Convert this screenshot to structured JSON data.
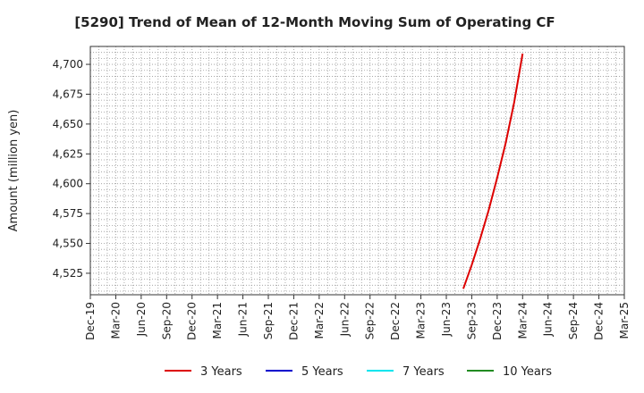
{
  "chart_data": {
    "type": "line",
    "title": "[5290]  Trend of Mean of 12-Month Moving Sum of Operating CF",
    "xlabel": "",
    "ylabel": "Amount (million yen)",
    "ylim": [
      4507,
      4715
    ],
    "yticks": [
      4525,
      4550,
      4575,
      4600,
      4625,
      4650,
      4675,
      4700
    ],
    "ytick_labels": [
      "4,525",
      "4,550",
      "4,575",
      "4,600",
      "4,625",
      "4,650",
      "4,675",
      "4,700"
    ],
    "xrange": [
      "2019-12",
      "2025-03"
    ],
    "xticks": [
      "2019-12",
      "2020-03",
      "2020-06",
      "2020-09",
      "2020-12",
      "2021-03",
      "2021-06",
      "2021-09",
      "2021-12",
      "2022-03",
      "2022-06",
      "2022-09",
      "2022-12",
      "2023-03",
      "2023-06",
      "2023-09",
      "2023-12",
      "2024-03",
      "2024-06",
      "2024-09",
      "2024-12",
      "2025-03"
    ],
    "xtick_labels": [
      "Dec-19",
      "Mar-20",
      "Jun-20",
      "Sep-20",
      "Dec-20",
      "Mar-21",
      "Jun-21",
      "Sep-21",
      "Dec-21",
      "Mar-22",
      "Jun-22",
      "Sep-22",
      "Dec-22",
      "Mar-23",
      "Jun-23",
      "Sep-23",
      "Dec-23",
      "Mar-24",
      "Jun-24",
      "Sep-24",
      "Dec-24",
      "Mar-25"
    ],
    "grid": true,
    "legend_position": "bottom",
    "series": [
      {
        "name": "3 Years",
        "color": "#dd0000",
        "x": [
          "2023-08",
          "2023-09",
          "2023-10",
          "2023-11",
          "2023-12",
          "2024-01",
          "2024-02",
          "2024-03"
        ],
        "values": [
          4512,
          4532,
          4554,
          4578,
          4605,
          4634,
          4668,
          4709
        ]
      },
      {
        "name": "5 Years",
        "color": "#0000cc",
        "x": [],
        "values": []
      },
      {
        "name": "7 Years",
        "color": "#00e5ee",
        "x": [],
        "values": []
      },
      {
        "name": "10 Years",
        "color": "#228b22",
        "x": [],
        "values": []
      }
    ]
  }
}
